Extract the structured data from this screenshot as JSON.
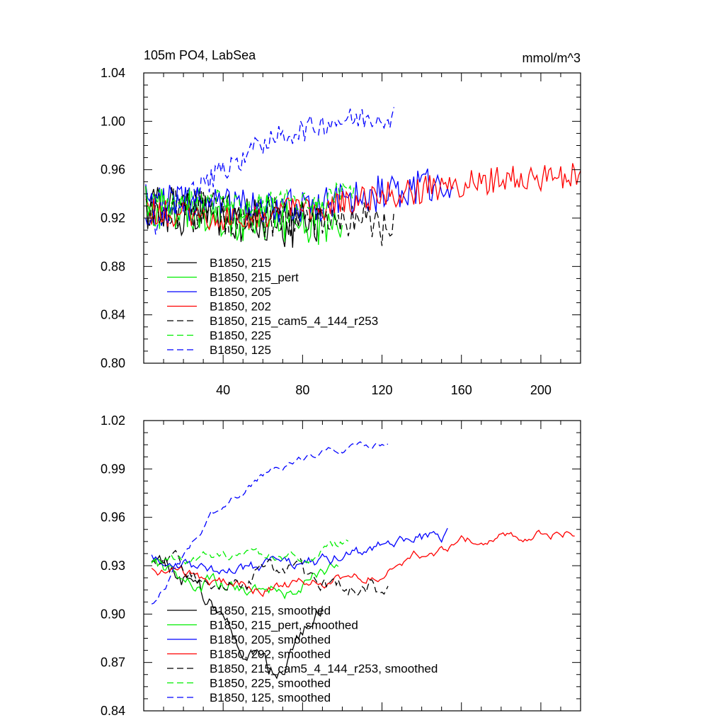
{
  "chart_data": [
    {
      "type": "line",
      "title": "105m PO4, LabSea",
      "units": "mmol/m^3",
      "xlabel": "",
      "ylabel": "",
      "xlim": [
        0,
        220
      ],
      "ylim": [
        0.8,
        1.04
      ],
      "xticks": [
        40,
        80,
        120,
        160,
        200
      ],
      "yticks": [
        "0.80",
        "0.84",
        "0.88",
        "0.92",
        "0.96",
        "1.00",
        "1.04"
      ],
      "legend_position": "bottom-left",
      "series": [
        {
          "name": "B1850, 215",
          "color": "#000000",
          "dash": "solid",
          "x_start": 1,
          "x_end": 90,
          "level": [
            0.93,
            0.925,
            0.92,
            0.915,
            0.91
          ],
          "noise": 0.02
        },
        {
          "name": "B1850, 215_pert",
          "color": "#00ee00",
          "dash": "solid",
          "x_start": 1,
          "x_end": 100,
          "level": [
            0.93,
            0.928,
            0.92,
            0.915,
            0.92
          ],
          "noise": 0.02
        },
        {
          "name": "B1850, 205",
          "color": "#0000ff",
          "dash": "solid",
          "x_start": 1,
          "x_end": 156,
          "level": [
            0.935,
            0.93,
            0.93,
            0.94,
            0.95
          ],
          "noise": 0.015
        },
        {
          "name": "B1850, 202",
          "color": "#ff0000",
          "dash": "solid",
          "x_start": 1,
          "x_end": 220,
          "level": [
            0.925,
            0.92,
            0.935,
            0.95,
            0.955
          ],
          "noise": 0.012
        },
        {
          "name": "B1850, 215_cam5_4_144_r253",
          "color": "#000000",
          "dash": "dashed",
          "x_start": 1,
          "x_end": 126,
          "level": [
            0.93,
            0.925,
            0.92,
            0.925,
            0.91
          ],
          "noise": 0.018
        },
        {
          "name": "B1850, 225",
          "color": "#00ee00",
          "dash": "dashed",
          "x_start": 1,
          "x_end": 106,
          "level": [
            0.935,
            0.935,
            0.93,
            0.935,
            0.94
          ],
          "noise": 0.012
        },
        {
          "name": "B1850, 125",
          "color": "#0000ff",
          "dash": "dashed",
          "x_start": 1,
          "x_end": 126,
          "level": [
            0.91,
            0.95,
            0.985,
            1.0,
            1.005
          ],
          "noise": 0.01
        }
      ]
    },
    {
      "type": "line",
      "title": "",
      "xlabel": "",
      "ylabel": "",
      "xlim": [
        0,
        220
      ],
      "ylim": [
        0.84,
        1.02
      ],
      "yticks": [
        "0.84",
        "0.87",
        "0.90",
        "0.93",
        "0.96",
        "0.99",
        "1.02"
      ],
      "legend_position": "bottom-left",
      "series": [
        {
          "name": "B1850, 215, smoothed",
          "color": "#000000",
          "dash": "solid",
          "x_start": 4,
          "x_end": 90,
          "level": [
            0.93,
            0.92,
            0.88,
            0.86,
            0.9
          ],
          "noise": 0.008
        },
        {
          "name": "B1850, 215_pert, smoothed",
          "color": "#00ee00",
          "dash": "solid",
          "x_start": 4,
          "x_end": 98,
          "level": [
            0.93,
            0.92,
            0.918,
            0.915,
            0.935
          ],
          "noise": 0.006
        },
        {
          "name": "B1850, 205, smoothed",
          "color": "#0000ff",
          "dash": "solid",
          "x_start": 4,
          "x_end": 153,
          "level": [
            0.935,
            0.925,
            0.93,
            0.94,
            0.95
          ],
          "noise": 0.005
        },
        {
          "name": "B1850, 202, smoothed",
          "color": "#ff0000",
          "dash": "solid",
          "x_start": 4,
          "x_end": 217,
          "level": [
            0.927,
            0.915,
            0.925,
            0.945,
            0.953
          ],
          "noise": 0.004
        },
        {
          "name": "B1850, 215_cam5_4_144_r253, smoothed",
          "color": "#000000",
          "dash": "dashed",
          "x_start": 4,
          "x_end": 123,
          "level": [
            0.93,
            0.925,
            0.925,
            0.92,
            0.915
          ],
          "noise": 0.007
        },
        {
          "name": "B1850, 225, smoothed",
          "color": "#00ee00",
          "dash": "dashed",
          "x_start": 4,
          "x_end": 103,
          "level": [
            0.93,
            0.935,
            0.935,
            0.935,
            0.945
          ],
          "noise": 0.004
        },
        {
          "name": "B1850, 125, smoothed",
          "color": "#0000ff",
          "dash": "dashed",
          "x_start": 4,
          "x_end": 123,
          "level": [
            0.905,
            0.96,
            0.99,
            1.0,
            1.005
          ],
          "noise": 0.003
        }
      ]
    }
  ]
}
